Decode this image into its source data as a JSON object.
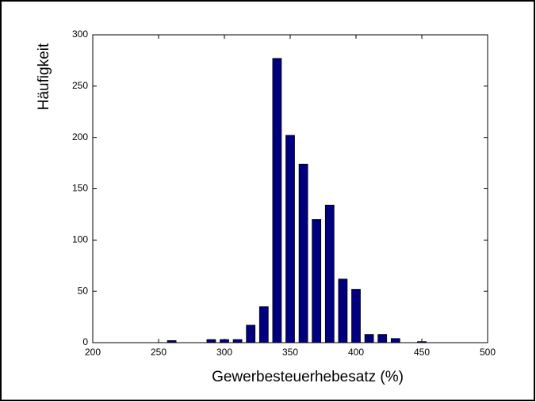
{
  "chart_data": {
    "type": "bar",
    "x_label": "Gewerbesteuerhebesatz (%)",
    "y_label": "Häufigkeit",
    "x": [
      260,
      290,
      300,
      310,
      320,
      330,
      340,
      350,
      360,
      370,
      380,
      390,
      400,
      410,
      420,
      430,
      450
    ],
    "values": [
      2,
      3,
      3,
      3,
      17,
      35,
      277,
      202,
      174,
      120,
      134,
      62,
      52,
      8,
      8,
      4,
      1
    ],
    "color": "#00007f",
    "xlim": [
      200,
      500
    ],
    "xticks": [
      200,
      250,
      300,
      350,
      400,
      450,
      500
    ],
    "ylim": [
      0,
      300
    ],
    "yticks": [
      0,
      50,
      100,
      150,
      200,
      250,
      300
    ],
    "grid": false
  }
}
